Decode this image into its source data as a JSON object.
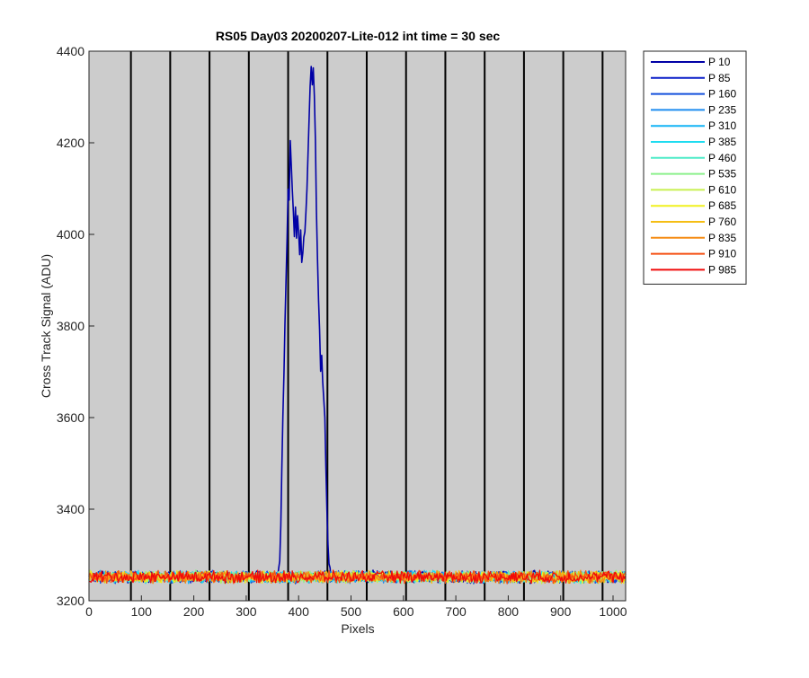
{
  "chart_data": {
    "type": "line",
    "title": "RS05 Day03 20200207-Lite-012 int time = 30 sec",
    "xlabel": "Pixels",
    "ylabel": "Cross Track Signal (ADU)",
    "xlim": [
      0,
      1024
    ],
    "ylim": [
      3200,
      4400
    ],
    "xticks": [
      0,
      100,
      200,
      300,
      400,
      500,
      600,
      700,
      800,
      900,
      1000
    ],
    "yticks": [
      3200,
      3400,
      3600,
      3800,
      4000,
      4200,
      4400
    ],
    "axes_background": "#cccccc",
    "vertical_lines": [
      80,
      155,
      230,
      305,
      380,
      455,
      530,
      605,
      680,
      755,
      830,
      905,
      980
    ],
    "legend_position": "outside-right-top",
    "baseline": 3252,
    "noise": 10,
    "series": [
      {
        "name": "P 10",
        "color": "#0000a6"
      },
      {
        "name": "P 85",
        "color": "#0a1ec8"
      },
      {
        "name": "P 160",
        "color": "#1450dc"
      },
      {
        "name": "P 235",
        "color": "#1e8cf0"
      },
      {
        "name": "P 310",
        "color": "#14b4f5"
      },
      {
        "name": "P 385",
        "color": "#1edcf0"
      },
      {
        "name": "P 460",
        "color": "#50ebc8"
      },
      {
        "name": "P 535",
        "color": "#8cf08c"
      },
      {
        "name": "P 610",
        "color": "#c8f050"
      },
      {
        "name": "P 685",
        "color": "#f0f01e"
      },
      {
        "name": "P 760",
        "color": "#f5be14"
      },
      {
        "name": "P 835",
        "color": "#f58c14"
      },
      {
        "name": "P 910",
        "color": "#f55014"
      },
      {
        "name": "P 985",
        "color": "#f00a0a"
      }
    ],
    "peak_series": "P 10",
    "peak_profile": [
      [
        360,
        3255
      ],
      [
        365,
        3300
      ],
      [
        370,
        3600
      ],
      [
        375,
        3850
      ],
      [
        378,
        4000
      ],
      [
        380,
        4100
      ],
      [
        382,
        4080
      ],
      [
        384,
        4210
      ],
      [
        386,
        4150
      ],
      [
        388,
        4100
      ],
      [
        390,
        4050
      ],
      [
        392,
        4000
      ],
      [
        394,
        4060
      ],
      [
        396,
        3990
      ],
      [
        398,
        4040
      ],
      [
        400,
        4000
      ],
      [
        402,
        3960
      ],
      [
        404,
        4010
      ],
      [
        406,
        3940
      ],
      [
        408,
        3960
      ],
      [
        410,
        3990
      ],
      [
        412,
        4000
      ],
      [
        414,
        4050
      ],
      [
        416,
        4100
      ],
      [
        418,
        4180
      ],
      [
        420,
        4250
      ],
      [
        422,
        4320
      ],
      [
        424,
        4370
      ],
      [
        426,
        4330
      ],
      [
        428,
        4365
      ],
      [
        430,
        4300
      ],
      [
        432,
        4200
      ],
      [
        434,
        4050
      ],
      [
        436,
        3950
      ],
      [
        438,
        3850
      ],
      [
        440,
        3790
      ],
      [
        442,
        3700
      ],
      [
        444,
        3740
      ],
      [
        446,
        3680
      ],
      [
        448,
        3640
      ],
      [
        450,
        3600
      ],
      [
        452,
        3500
      ],
      [
        455,
        3350
      ],
      [
        458,
        3280
      ],
      [
        462,
        3255
      ]
    ]
  }
}
